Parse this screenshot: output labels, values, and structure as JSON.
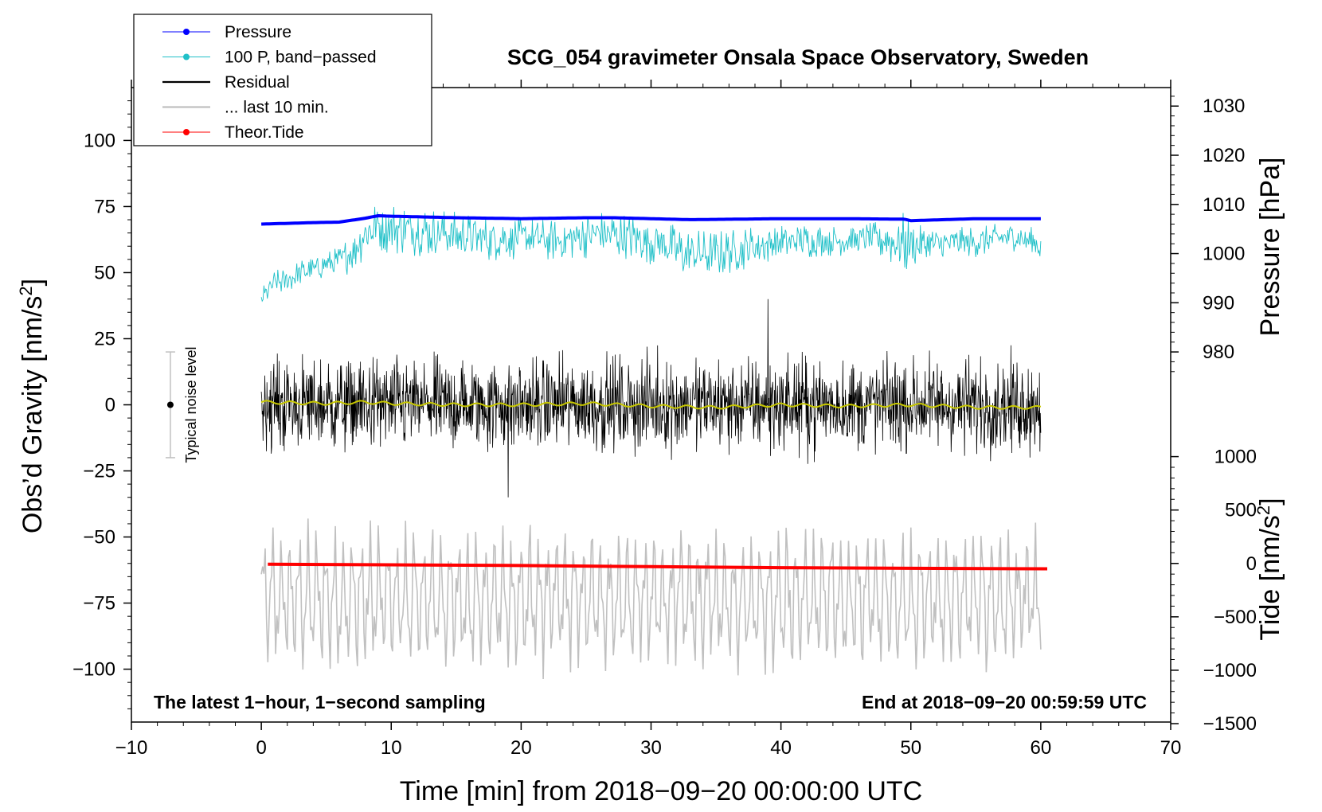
{
  "chart_data": {
    "type": "line",
    "title": "SCG_054 gravimeter Onsala Space Observatory, Sweden",
    "xlabel": "Time [min] from 2018−09−20 00:00:00 UTC",
    "ylabel_left": "Obs’d Gravity [nm/s",
    "ylabel_left_sup": "2",
    "ylabel_left_end": "]",
    "ylabel_right_pressure": "Pressure [hPa]",
    "ylabel_right_tide": "Tide [nm/s",
    "ylabel_right_tide_sup": "2",
    "ylabel_right_tide_end": "]",
    "xlim": [
      -10,
      70
    ],
    "ylim_left": [
      -120,
      120
    ],
    "x_ticks": [
      {
        "value": -10,
        "label": "−10"
      },
      {
        "value": 0,
        "label": "0"
      },
      {
        "value": 10,
        "label": "10"
      },
      {
        "value": 20,
        "label": "20"
      },
      {
        "value": 30,
        "label": "30"
      },
      {
        "value": 40,
        "label": "40"
      },
      {
        "value": 50,
        "label": "50"
      },
      {
        "value": 60,
        "label": "60"
      },
      {
        "value": 70,
        "label": "70"
      }
    ],
    "y_left_ticks": [
      {
        "value": 100,
        "label": "100"
      },
      {
        "value": 75,
        "label": "75"
      },
      {
        "value": 50,
        "label": "50"
      },
      {
        "value": 25,
        "label": "25"
      },
      {
        "value": 0,
        "label": "0"
      },
      {
        "value": -25,
        "label": "−25"
      },
      {
        "value": -50,
        "label": "−50"
      },
      {
        "value": -75,
        "label": "−75"
      },
      {
        "value": -100,
        "label": "−100"
      }
    ],
    "pressure_axis": {
      "ticks": [
        {
          "value": 1030,
          "label": "1030"
        },
        {
          "value": 1020,
          "label": "1020"
        },
        {
          "value": 1010,
          "label": "1010"
        },
        {
          "value": 1000,
          "label": "1000"
        },
        {
          "value": 990,
          "label": "990"
        },
        {
          "value": 980,
          "label": "980"
        }
      ],
      "gravity_at_980": 20,
      "gravity_per_hPa": 1.86
    },
    "tide_axis": {
      "ticks": [
        {
          "value": 1000,
          "label": "1000"
        },
        {
          "value": 500,
          "label": "500"
        },
        {
          "value": 0,
          "label": "0"
        },
        {
          "value": -500,
          "label": "−500"
        },
        {
          "value": -1000,
          "label": "−1000"
        },
        {
          "value": -1500,
          "label": "−1500"
        }
      ],
      "gravity_at_0": -60,
      "gravity_per_unit": 0.0404
    },
    "annotation_left": "The latest 1−hour, 1−second sampling",
    "annotation_right": "End at 2018−09−20 00:59:59 UTC",
    "noise_level": {
      "label": "Typical noise level",
      "x": -7,
      "center": 0,
      "low": -20,
      "high": 20
    },
    "legend": [
      {
        "label": "Pressure",
        "color": "#0000ff",
        "style": "line-dot"
      },
      {
        "label": "100 P, band−passed",
        "color": "#20c0c8",
        "style": "line-dot"
      },
      {
        "label": "Residual",
        "color": "#000000",
        "style": "line"
      },
      {
        "label": "... last 10 min.",
        "color": "#c0c0c0",
        "style": "line"
      },
      {
        "label": "Theor.Tide",
        "color": "#ff0000",
        "style": "line-dot"
      }
    ],
    "series": [
      {
        "name": "Pressure",
        "unit": "hPa",
        "color": "#0000ff",
        "x": [
          0,
          4,
          6,
          7,
          8,
          9,
          10,
          15,
          20,
          25,
          27,
          30,
          33,
          40,
          45,
          49.5,
          50,
          55,
          60
        ],
        "y": [
          1006.0,
          1006.3,
          1006.4,
          1006.8,
          1007.2,
          1007.7,
          1007.6,
          1007.3,
          1007.1,
          1007.3,
          1007.3,
          1007.1,
          1006.9,
          1007.1,
          1007.1,
          1007.0,
          1006.7,
          1007.1,
          1007.1
        ]
      },
      {
        "name": "100 P, band−passed",
        "unit": "nm/s2",
        "color": "#20c0c8",
        "x": [
          0,
          1,
          2,
          3,
          4,
          5,
          6,
          7,
          8,
          9,
          10,
          12,
          14,
          17,
          20,
          23,
          26,
          29,
          31,
          32.5,
          35,
          38,
          41,
          44,
          47,
          49.5,
          50.5,
          53,
          56,
          58,
          60
        ],
        "y": [
          40,
          46,
          47,
          50,
          51,
          53,
          54,
          58,
          65,
          68,
          67,
          66,
          65,
          63,
          63,
          62,
          65,
          63,
          61,
          57,
          57,
          60,
          62,
          62,
          63,
          61,
          60,
          61,
          62,
          64,
          60
        ],
        "amplitude": [
          4,
          5,
          5,
          5,
          5,
          5,
          6,
          8,
          10,
          10,
          10,
          10,
          9,
          9,
          8,
          8,
          9,
          9,
          9,
          10,
          9,
          8,
          7,
          6,
          6,
          12,
          8,
          6,
          6,
          6,
          6
        ]
      },
      {
        "name": "Residual",
        "unit": "nm/s2",
        "color": "#000000",
        "x": [
          0,
          60
        ],
        "y": [
          0,
          0
        ],
        "envelope": 25,
        "extreme": [
          -35,
          40
        ]
      },
      {
        "name": "Residual smoothed",
        "unit": "nm/s2",
        "color": "#c8c800",
        "x": [
          0,
          5,
          8,
          10,
          15,
          20,
          25,
          30,
          35,
          40,
          45,
          50,
          55,
          60
        ],
        "y": [
          1,
          0.5,
          1,
          0.5,
          0,
          0,
          0.5,
          -0.5,
          -1,
          0,
          -0.5,
          0,
          -1,
          -1
        ]
      },
      {
        "name": "... last 10 min.",
        "unit": "nm/s2",
        "color": "#c0c0c0",
        "x": [
          0,
          60
        ],
        "y": [
          -72,
          -72
        ],
        "amplitude": [
          -105,
          -42
        ]
      },
      {
        "name": "Theor.Tide",
        "unit": "nm/s2",
        "color": "#ff0000",
        "x": [
          0.5,
          10,
          20,
          30,
          40,
          50,
          60.5
        ],
        "y": [
          -8,
          -13,
          -20,
          -30,
          -40,
          -46,
          -50
        ]
      }
    ]
  }
}
